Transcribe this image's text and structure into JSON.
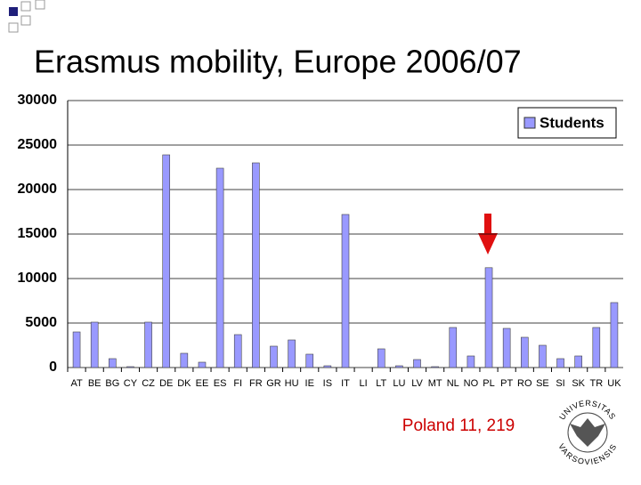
{
  "chart_data": {
    "type": "bar",
    "title": "Erasmus mobility, Europe 2006/07",
    "categories": [
      "AT",
      "BE",
      "BG",
      "CY",
      "CZ",
      "DE",
      "DK",
      "EE",
      "ES",
      "FI",
      "FR",
      "GR",
      "HU",
      "IE",
      "IS",
      "IT",
      "LI",
      "LT",
      "LU",
      "LV",
      "MT",
      "NL",
      "NO",
      "PL",
      "PT",
      "RO",
      "SE",
      "SI",
      "SK",
      "TR",
      "UK"
    ],
    "series": [
      {
        "name": "Students",
        "color": "#9999ff",
        "values": [
          4000,
          5100,
          1000,
          100,
          5100,
          23900,
          1600,
          600,
          22400,
          3700,
          23000,
          2400,
          3100,
          1500,
          200,
          17200,
          0,
          2100,
          200,
          900,
          100,
          4500,
          1300,
          11219,
          4400,
          3400,
          2500,
          1000,
          1300,
          4500,
          7300
        ]
      }
    ],
    "ylim": [
      0,
      30000
    ],
    "yticks": [
      0,
      5000,
      10000,
      15000,
      20000,
      25000,
      30000
    ],
    "grid": true,
    "legend": "upper right",
    "annotation": "Poland 11, 219",
    "logo": {
      "top": "UNIVERSITAS",
      "bottom": "VARSOVIENSIS"
    }
  }
}
